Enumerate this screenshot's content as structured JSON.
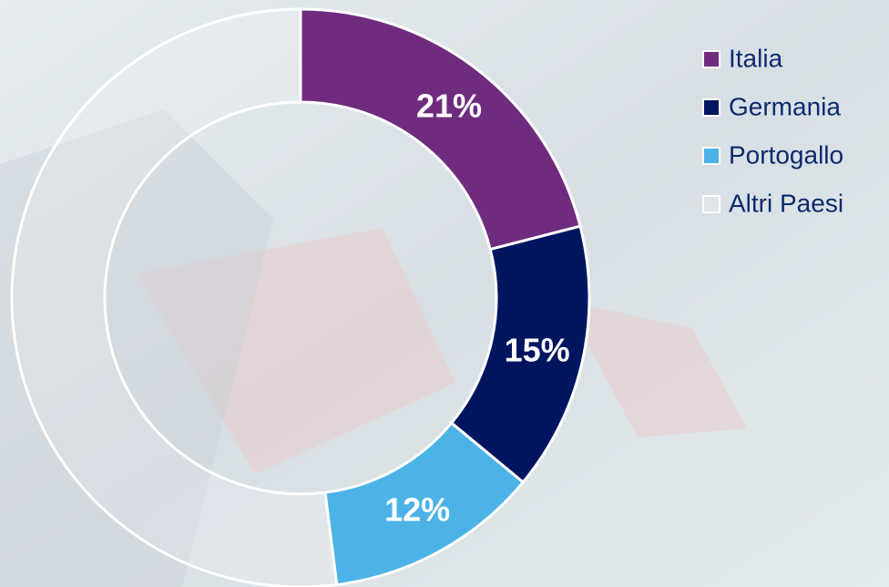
{
  "chart_data": {
    "type": "donut",
    "categories": [
      "Italia",
      "Germania",
      "Portogallo",
      "Altri Paesi"
    ],
    "values": [
      21,
      15,
      12,
      52
    ],
    "value_labels": [
      "21%",
      "15%",
      "12%",
      null
    ],
    "colors": [
      "#6f2c7e",
      "#001560",
      "#4bb3e6",
      "rgba(255,255,255,0.15)"
    ],
    "legend": "top-right"
  }
}
